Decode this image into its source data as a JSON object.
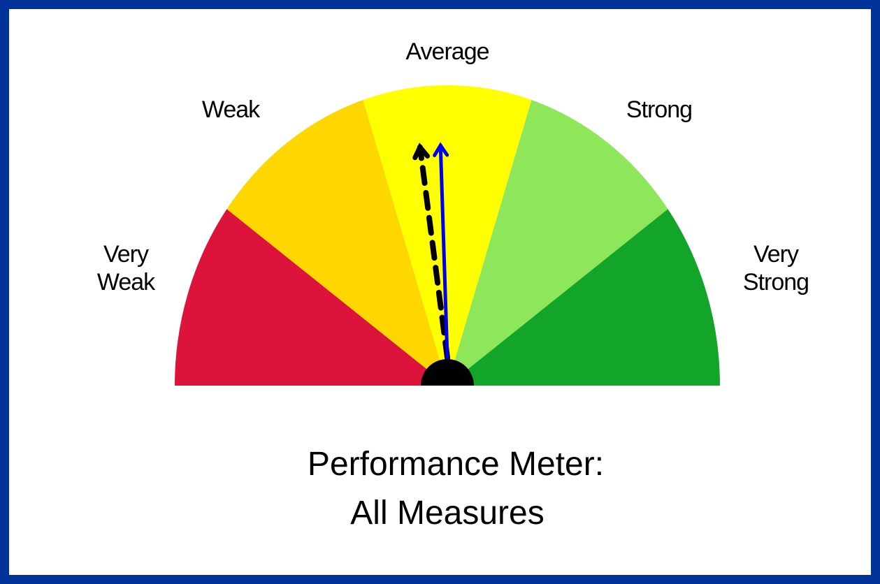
{
  "chart_data": {
    "type": "gauge",
    "title": [
      "Performance Meter:",
      "All Measures"
    ],
    "categories": [
      [
        "Very",
        "Weak"
      ],
      [
        "Weak"
      ],
      [
        "Average"
      ],
      [
        "Strong"
      ],
      [
        "Very",
        "Strong"
      ]
    ],
    "colors": [
      "#dc143c",
      "#ffd700",
      "#ffff00",
      "#8ee65a",
      "#12a52a"
    ],
    "range": [
      0,
      5
    ],
    "needles": [
      {
        "value": 2.3,
        "color": "#000000",
        "style": "dashed"
      },
      {
        "value": 2.45,
        "color": "#0000ee",
        "style": "solid"
      }
    ]
  }
}
